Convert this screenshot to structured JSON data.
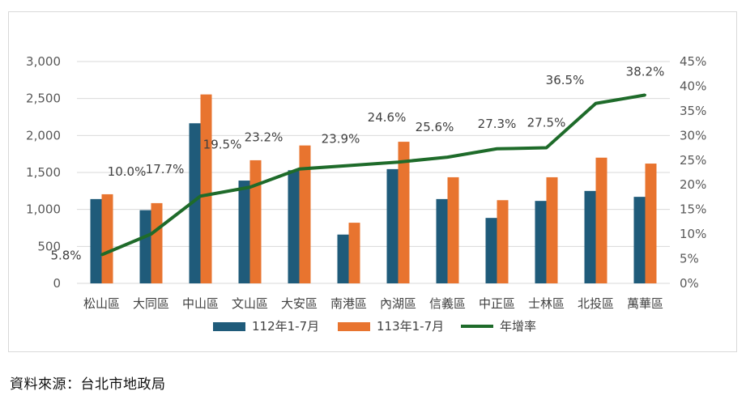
{
  "chart_data": {
    "type": "bar",
    "categories": [
      "松山區",
      "大同區",
      "中山區",
      "文山區",
      "大安區",
      "南港區",
      "內湖區",
      "信義區",
      "中正區",
      "士林區",
      "北投區",
      "萬華區"
    ],
    "series": [
      {
        "name": "112年1-7月",
        "type": "bar",
        "axis": "left",
        "color": "#1f5b7a",
        "values": [
          1140,
          990,
          2165,
          1390,
          1530,
          660,
          1545,
          1140,
          885,
          1115,
          1250,
          1170
        ]
      },
      {
        "name": "113年1-7月",
        "type": "bar",
        "axis": "left",
        "color": "#e8742f",
        "values": [
          1205,
          1085,
          2555,
          1665,
          1865,
          820,
          1915,
          1435,
          1125,
          1435,
          1700,
          1620
        ]
      },
      {
        "name": "年增率",
        "type": "line",
        "axis": "right",
        "color": "#1e6b2a",
        "values": [
          5.8,
          10.0,
          17.7,
          19.5,
          23.2,
          23.9,
          24.6,
          25.6,
          27.3,
          27.5,
          36.5,
          38.2
        ],
        "labels": [
          "5.8%",
          "10.0%",
          "17.7%",
          "19.5%",
          "23.2%",
          "23.9%",
          "24.6%",
          "25.6%",
          "27.3%",
          "27.5%",
          "36.5%",
          "38.2%"
        ]
      }
    ],
    "y_left": {
      "ylim": [
        0,
        3000
      ],
      "ticks": [
        0,
        500,
        1000,
        1500,
        2000,
        2500,
        3000
      ],
      "tick_labels": [
        "0",
        "500",
        "1,000",
        "1,500",
        "2,000",
        "2,500",
        "3,000"
      ]
    },
    "y_right": {
      "ylim": [
        0,
        45
      ],
      "ticks": [
        0,
        5,
        10,
        15,
        20,
        25,
        30,
        35,
        40,
        45
      ],
      "tick_labels": [
        "0%",
        "5%",
        "10%",
        "15%",
        "20%",
        "25%",
        "30%",
        "35%",
        "40%",
        "45%"
      ]
    },
    "grid": true,
    "legend": "bottom"
  },
  "source": "資料來源：台北市地政局"
}
